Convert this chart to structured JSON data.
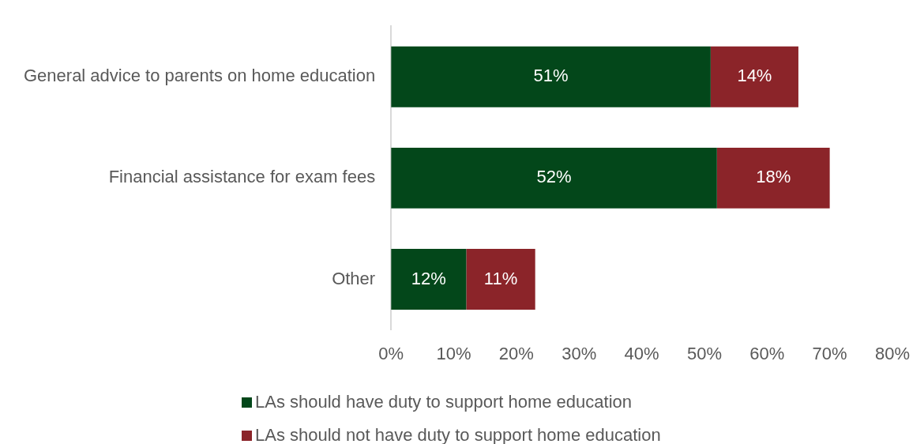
{
  "chart_data": {
    "type": "bar",
    "orientation": "horizontal",
    "stacked": true,
    "categories": [
      "General advice to parents on home education",
      "Financial assistance for exam fees",
      "Other"
    ],
    "series": [
      {
        "name": "LAs should have duty to support home education",
        "color": "#03471a",
        "values": [
          51,
          52,
          12
        ],
        "value_labels": [
          "51%",
          "52%",
          "12%"
        ]
      },
      {
        "name": "LAs should not have duty to support home education",
        "color": "#8b2429",
        "values": [
          14,
          18,
          11
        ],
        "value_labels": [
          "14%",
          "18%",
          "11%"
        ]
      }
    ],
    "xlim": [
      0,
      80
    ],
    "xticks": [
      {
        "value": 0,
        "label": "0%"
      },
      {
        "value": 10,
        "label": "10%"
      },
      {
        "value": 20,
        "label": "20%"
      },
      {
        "value": 30,
        "label": "30%"
      },
      {
        "value": 40,
        "label": "40%"
      },
      {
        "value": 50,
        "label": "50%"
      },
      {
        "value": 60,
        "label": "60%"
      },
      {
        "value": 70,
        "label": "70%"
      },
      {
        "value": 80,
        "label": "80%"
      }
    ],
    "legend": "bottom",
    "grid": false
  }
}
